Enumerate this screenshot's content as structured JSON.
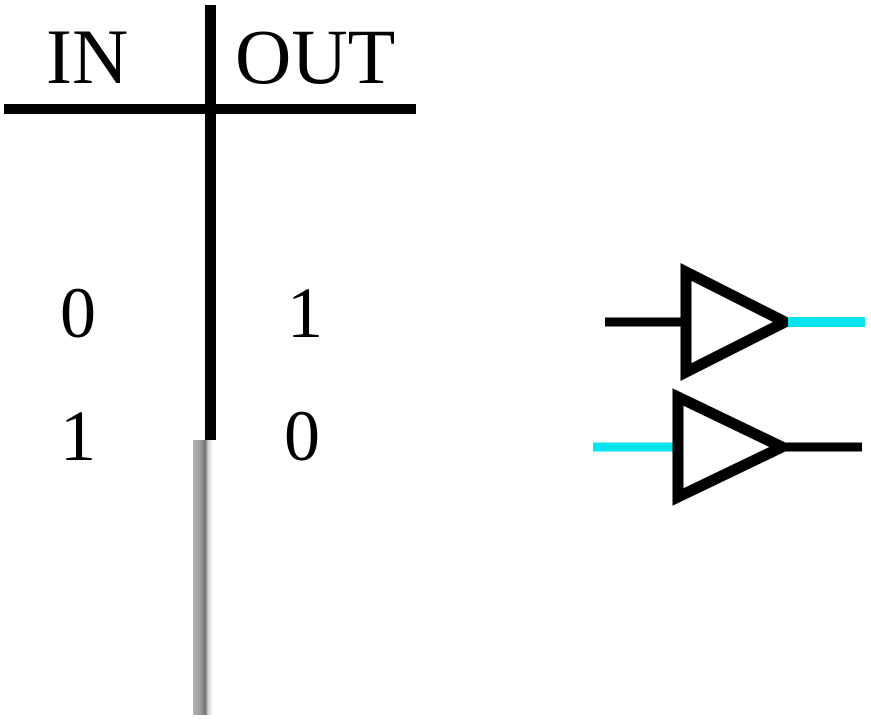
{
  "table": {
    "headers": {
      "input": "IN",
      "output": "OUT"
    },
    "rows": [
      {
        "input": "0",
        "output": "1"
      },
      {
        "input": "1",
        "output": "0"
      }
    ]
  },
  "gates": [
    {
      "symbol": "buffer-triangle-icon",
      "active_wire": "output"
    },
    {
      "symbol": "buffer-triangle-icon",
      "active_wire": "input"
    }
  ],
  "colors": {
    "line": "#000000",
    "active_wire": "#00e5ee",
    "background": "#ffffff",
    "faded_rule": "#9a9a9a"
  }
}
